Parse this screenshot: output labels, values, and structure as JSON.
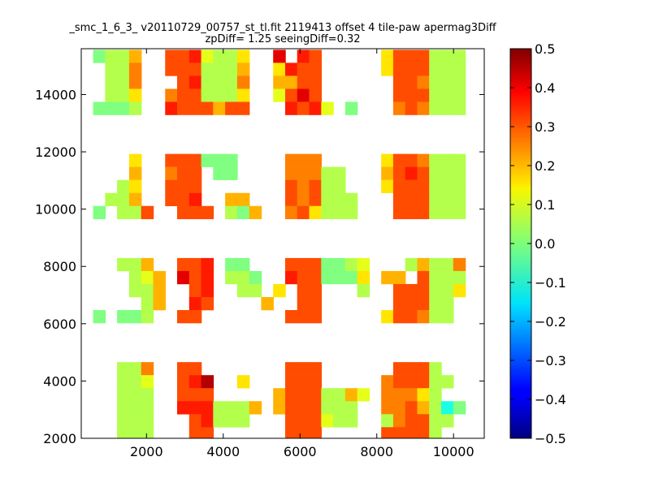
{
  "chart_data": {
    "type": "heatmap",
    "title_lines": [
      "_smc_1_6_3_ v20110729_00757_st_tl.fit 2119413 offset 4 tile-paw apermag3Diff",
      "zpDiff= 1.25 seeingDiff=0.32"
    ],
    "xlabel": "",
    "ylabel": "",
    "xlim": [
      300,
      10800
    ],
    "ylim": [
      2000,
      15600
    ],
    "x_ticks": [
      2000,
      4000,
      6000,
      8000,
      10000
    ],
    "y_ticks": [
      2000,
      4000,
      6000,
      8000,
      10000,
      12000,
      14000
    ],
    "grid": false,
    "colormap": "jet",
    "clim": [
      -0.5,
      0.5
    ],
    "colorbar_ticks": [
      "0.5",
      "0.4",
      "0.3",
      "0.2",
      "0.1",
      "0.0",
      "−0.1",
      "−0.2",
      "−0.3",
      "−0.4",
      "−0.5"
    ],
    "cell_width": 320,
    "cell_height": 450,
    "x_cell_centers": [
      456,
      769,
      1082,
      1394,
      1707,
      2020,
      2333,
      2646,
      2958,
      3271,
      3584,
      3896,
      4209,
      4522,
      4835,
      5147,
      5460,
      5773,
      6085,
      6398,
      6711,
      7024,
      7336,
      7649,
      7962,
      8275,
      8587,
      8900,
      9213,
      9525,
      9838,
      10151,
      10464
    ],
    "y_cell_centers": [
      15336,
      14882,
      14428,
      13974,
      13519,
      13065,
      12611,
      12156,
      11702,
      11248,
      10794,
      10339,
      9885,
      9431,
      8977,
      8522,
      8068,
      7614,
      7160,
      6705,
      6251,
      5797,
      5342,
      4888,
      4434,
      3980,
      3525,
      3071,
      2617,
      2163
    ],
    "values": [
      [
        null,
        0.0,
        0.05,
        0.05,
        0.2,
        null,
        null,
        0.3,
        0.3,
        0.35,
        0.1,
        0.05,
        0.05,
        0.15,
        null,
        null,
        0.4,
        null,
        0.35,
        0.3,
        null,
        null,
        null,
        null,
        null,
        0.15,
        0.3,
        0.3,
        0.3,
        0.05,
        0.05,
        0.05,
        null
      ],
      [
        null,
        null,
        0.05,
        0.05,
        0.25,
        null,
        null,
        0.3,
        0.3,
        0.3,
        0.05,
        0.05,
        0.05,
        0.2,
        null,
        null,
        0.15,
        0.35,
        0.3,
        0.3,
        null,
        null,
        null,
        null,
        null,
        0.15,
        0.3,
        0.3,
        0.3,
        0.05,
        0.05,
        0.05,
        null
      ],
      [
        null,
        null,
        0.05,
        0.05,
        0.25,
        null,
        null,
        null,
        0.3,
        0.35,
        0.05,
        0.05,
        0.05,
        0.25,
        null,
        null,
        0.2,
        0.2,
        0.3,
        0.3,
        null,
        null,
        null,
        null,
        null,
        null,
        0.3,
        0.3,
        0.25,
        0.05,
        0.05,
        0.05,
        null
      ],
      [
        null,
        null,
        0.05,
        0.05,
        0.15,
        null,
        null,
        0.25,
        0.3,
        0.3,
        0.05,
        0.05,
        0.05,
        0.15,
        null,
        null,
        0.1,
        0.3,
        0.4,
        0.3,
        null,
        null,
        null,
        null,
        null,
        null,
        0.3,
        0.3,
        0.3,
        0.05,
        0.05,
        0.05,
        null
      ],
      [
        null,
        0.0,
        0.0,
        0.0,
        0.05,
        null,
        null,
        0.35,
        0.3,
        0.3,
        0.3,
        0.2,
        0.3,
        0.3,
        null,
        null,
        null,
        0.35,
        0.3,
        0.35,
        0.1,
        null,
        0.0,
        null,
        null,
        null,
        0.25,
        0.3,
        0.25,
        0.05,
        0.05,
        0.05,
        null
      ],
      [
        null,
        null,
        null,
        null,
        null,
        null,
        null,
        null,
        null,
        null,
        null,
        null,
        null,
        null,
        null,
        null,
        null,
        null,
        null,
        null,
        null,
        null,
        null,
        null,
        null,
        null,
        null,
        null,
        null,
        null,
        null,
        null,
        null
      ],
      [
        null,
        null,
        null,
        null,
        null,
        null,
        null,
        null,
        null,
        null,
        null,
        null,
        null,
        null,
        null,
        null,
        null,
        null,
        null,
        null,
        null,
        null,
        null,
        null,
        null,
        null,
        null,
        null,
        null,
        null,
        null,
        null,
        null
      ],
      [
        null,
        null,
        null,
        null,
        null,
        null,
        null,
        null,
        null,
        null,
        null,
        null,
        null,
        null,
        null,
        null,
        null,
        null,
        null,
        null,
        null,
        null,
        null,
        null,
        null,
        null,
        null,
        null,
        null,
        null,
        null,
        null,
        null
      ],
      [
        null,
        null,
        null,
        null,
        0.15,
        null,
        null,
        0.3,
        0.3,
        0.3,
        0.0,
        0.0,
        0.0,
        null,
        null,
        null,
        null,
        0.25,
        0.25,
        0.25,
        null,
        null,
        null,
        null,
        null,
        0.15,
        0.3,
        0.3,
        0.25,
        0.05,
        0.05,
        0.05,
        null
      ],
      [
        null,
        null,
        null,
        null,
        0.2,
        null,
        null,
        0.25,
        0.3,
        0.3,
        null,
        0.0,
        0.0,
        null,
        null,
        null,
        null,
        0.25,
        0.25,
        0.25,
        0.05,
        0.05,
        null,
        null,
        null,
        0.2,
        0.3,
        0.35,
        0.3,
        0.05,
        0.05,
        0.05,
        null
      ],
      [
        null,
        null,
        null,
        0.05,
        0.15,
        null,
        null,
        0.3,
        0.3,
        0.3,
        null,
        null,
        null,
        null,
        null,
        null,
        null,
        0.3,
        0.25,
        0.3,
        0.05,
        0.05,
        null,
        null,
        null,
        0.15,
        0.3,
        0.3,
        0.3,
        0.05,
        0.05,
        0.05,
        null
      ],
      [
        null,
        null,
        0.05,
        0.05,
        0.2,
        null,
        null,
        0.3,
        0.3,
        0.35,
        null,
        null,
        0.2,
        0.2,
        null,
        null,
        null,
        0.3,
        0.25,
        0.3,
        0.05,
        0.05,
        0.05,
        null,
        null,
        null,
        0.3,
        0.3,
        0.3,
        0.05,
        0.05,
        0.05,
        null
      ],
      [
        null,
        0.0,
        null,
        0.05,
        0.05,
        0.3,
        null,
        null,
        0.3,
        0.3,
        0.3,
        null,
        0.05,
        0.0,
        0.2,
        null,
        null,
        0.25,
        0.3,
        0.15,
        0.05,
        0.05,
        0.05,
        null,
        null,
        null,
        0.3,
        0.3,
        0.3,
        0.05,
        0.05,
        0.05,
        null
      ],
      [
        null,
        null,
        null,
        null,
        null,
        null,
        null,
        null,
        null,
        null,
        null,
        null,
        null,
        null,
        null,
        null,
        null,
        null,
        null,
        null,
        null,
        null,
        null,
        null,
        null,
        null,
        null,
        null,
        null,
        null,
        null,
        null,
        null
      ],
      [
        null,
        null,
        null,
        null,
        null,
        null,
        null,
        null,
        null,
        null,
        null,
        null,
        null,
        null,
        null,
        null,
        null,
        null,
        null,
        null,
        null,
        null,
        null,
        null,
        null,
        null,
        null,
        null,
        null,
        null,
        null,
        null,
        null
      ],
      [
        null,
        null,
        null,
        null,
        null,
        null,
        null,
        null,
        null,
        null,
        null,
        null,
        null,
        null,
        null,
        null,
        null,
        null,
        null,
        null,
        null,
        null,
        null,
        null,
        null,
        null,
        null,
        null,
        null,
        null,
        null,
        null,
        null
      ],
      [
        null,
        null,
        null,
        0.05,
        0.05,
        0.2,
        null,
        null,
        0.3,
        0.3,
        0.35,
        null,
        0.0,
        0.0,
        null,
        null,
        null,
        0.3,
        0.3,
        0.3,
        0.0,
        0.0,
        0.05,
        0.1,
        null,
        null,
        null,
        0.05,
        0.2,
        0.05,
        0.05,
        0.25,
        null
      ],
      [
        null,
        null,
        null,
        null,
        0.05,
        0.1,
        0.2,
        null,
        0.4,
        0.3,
        0.35,
        null,
        0.05,
        0.05,
        0.0,
        null,
        null,
        0.35,
        0.3,
        0.3,
        0.0,
        0.0,
        0.0,
        0.15,
        null,
        0.2,
        0.2,
        null,
        0.3,
        0.05,
        0.05,
        0.05,
        null
      ],
      [
        null,
        null,
        null,
        null,
        0.05,
        0.05,
        0.2,
        null,
        null,
        0.3,
        0.35,
        null,
        null,
        0.05,
        0.05,
        null,
        0.15,
        null,
        0.3,
        0.3,
        null,
        null,
        null,
        0.05,
        null,
        null,
        0.3,
        0.3,
        0.3,
        0.05,
        0.05,
        0.15,
        null
      ],
      [
        null,
        null,
        null,
        null,
        null,
        0.05,
        0.2,
        null,
        null,
        0.35,
        0.3,
        null,
        null,
        null,
        null,
        0.2,
        null,
        null,
        0.3,
        0.3,
        null,
        null,
        null,
        null,
        null,
        null,
        0.3,
        0.3,
        0.3,
        0.05,
        0.05,
        null,
        null
      ],
      [
        null,
        0.0,
        null,
        0.0,
        0.0,
        0.05,
        null,
        null,
        0.3,
        0.3,
        null,
        null,
        null,
        null,
        null,
        null,
        null,
        0.3,
        0.3,
        0.3,
        null,
        null,
        null,
        null,
        null,
        0.15,
        0.3,
        0.3,
        0.25,
        0.05,
        0.05,
        null,
        null
      ],
      [
        null,
        null,
        null,
        null,
        null,
        null,
        null,
        null,
        null,
        null,
        null,
        null,
        null,
        null,
        null,
        null,
        null,
        null,
        null,
        null,
        null,
        null,
        null,
        null,
        null,
        null,
        null,
        null,
        null,
        null,
        null,
        null,
        null
      ],
      [
        null,
        null,
        null,
        null,
        null,
        null,
        null,
        null,
        null,
        null,
        null,
        null,
        null,
        null,
        null,
        null,
        null,
        null,
        null,
        null,
        null,
        null,
        null,
        null,
        null,
        null,
        null,
        null,
        null,
        null,
        null,
        null,
        null
      ],
      [
        null,
        null,
        null,
        null,
        null,
        null,
        null,
        null,
        null,
        null,
        null,
        null,
        null,
        null,
        null,
        null,
        null,
        null,
        null,
        null,
        null,
        null,
        null,
        null,
        null,
        null,
        null,
        null,
        null,
        null,
        null,
        null,
        null
      ],
      [
        null,
        null,
        null,
        0.05,
        0.05,
        0.25,
        null,
        null,
        0.3,
        0.3,
        null,
        null,
        null,
        null,
        null,
        null,
        null,
        0.3,
        0.3,
        0.3,
        null,
        null,
        null,
        null,
        null,
        null,
        0.3,
        0.3,
        0.3,
        0.05,
        null,
        null,
        null
      ],
      [
        null,
        null,
        null,
        0.05,
        0.05,
        0.1,
        null,
        null,
        0.3,
        0.35,
        0.45,
        null,
        null,
        0.15,
        null,
        null,
        null,
        0.3,
        0.3,
        0.3,
        null,
        null,
        null,
        null,
        null,
        0.25,
        0.3,
        0.3,
        0.3,
        0.05,
        0.05,
        null,
        null
      ],
      [
        null,
        null,
        null,
        0.05,
        0.05,
        0.05,
        null,
        null,
        0.3,
        0.3,
        0.3,
        null,
        null,
        null,
        null,
        null,
        0.2,
        0.3,
        0.3,
        0.3,
        0.05,
        0.05,
        0.2,
        0.1,
        null,
        0.25,
        0.25,
        0.25,
        0.15,
        0.05,
        null,
        null,
        null
      ],
      [
        null,
        null,
        null,
        0.05,
        0.05,
        0.05,
        null,
        null,
        0.35,
        0.35,
        0.35,
        0.05,
        0.05,
        0.05,
        0.2,
        null,
        0.2,
        0.3,
        0.3,
        0.3,
        0.05,
        0.05,
        0.05,
        null,
        null,
        0.25,
        0.25,
        0.3,
        0.2,
        0.05,
        -0.1,
        0.0,
        null
      ],
      [
        null,
        null,
        null,
        0.05,
        0.05,
        0.05,
        null,
        null,
        null,
        0.3,
        0.35,
        0.05,
        0.05,
        0.05,
        null,
        null,
        null,
        0.3,
        0.3,
        0.3,
        0.1,
        0.05,
        0.05,
        null,
        null,
        0.05,
        0.25,
        0.3,
        0.3,
        0.05,
        0.05,
        null,
        null
      ],
      [
        null,
        null,
        null,
        0.05,
        0.05,
        0.05,
        null,
        null,
        null,
        0.3,
        0.3,
        null,
        null,
        null,
        null,
        null,
        null,
        0.3,
        0.3,
        0.3,
        null,
        null,
        null,
        null,
        null,
        0.3,
        0.3,
        0.3,
        0.3,
        0.05,
        null,
        null,
        null
      ]
    ]
  }
}
